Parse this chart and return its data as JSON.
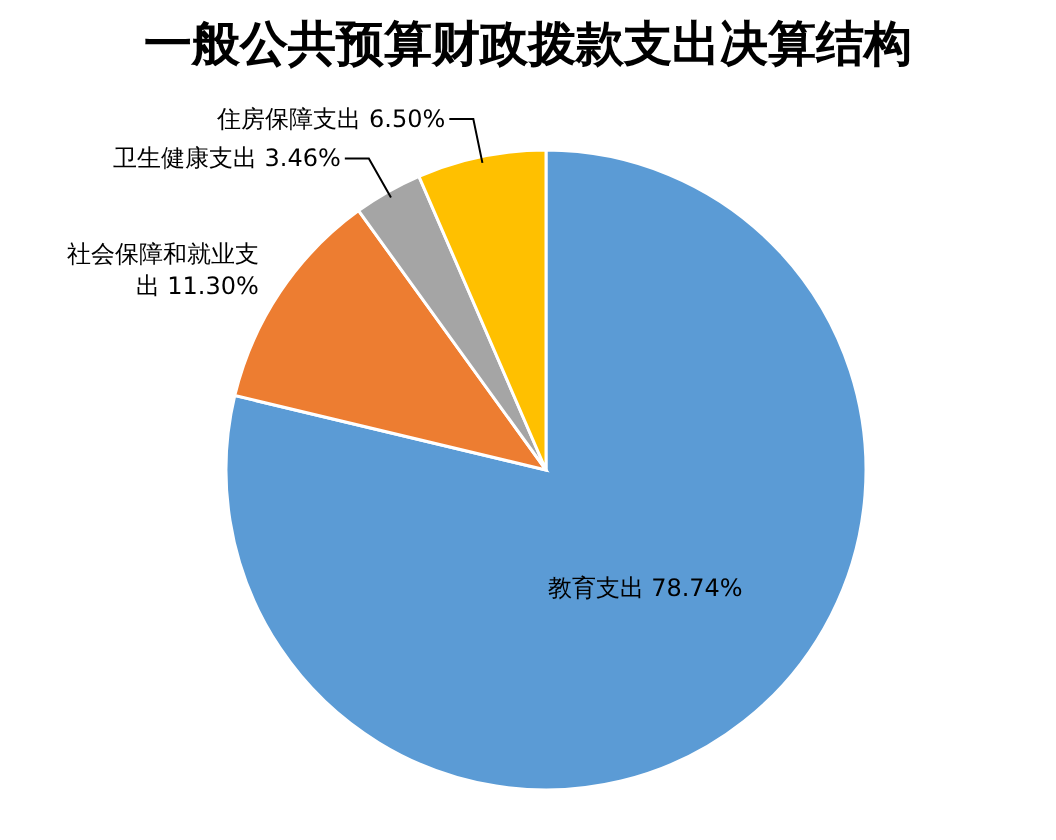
{
  "chart_data": {
    "type": "pie",
    "title": "一般公共预算财政拨款支出决算结构",
    "categories": [
      "教育支出",
      "社会保障和就业支出",
      "卫生健康支出",
      "住房保障支出"
    ],
    "values": [
      78.74,
      11.3,
      3.46,
      6.5
    ],
    "value_labels": [
      "78.74%",
      "11.30%",
      "3.46%",
      "6.50%"
    ],
    "colors": [
      "#5b9bd5",
      "#ed7d31",
      "#a5a5a5",
      "#ffc000"
    ]
  }
}
